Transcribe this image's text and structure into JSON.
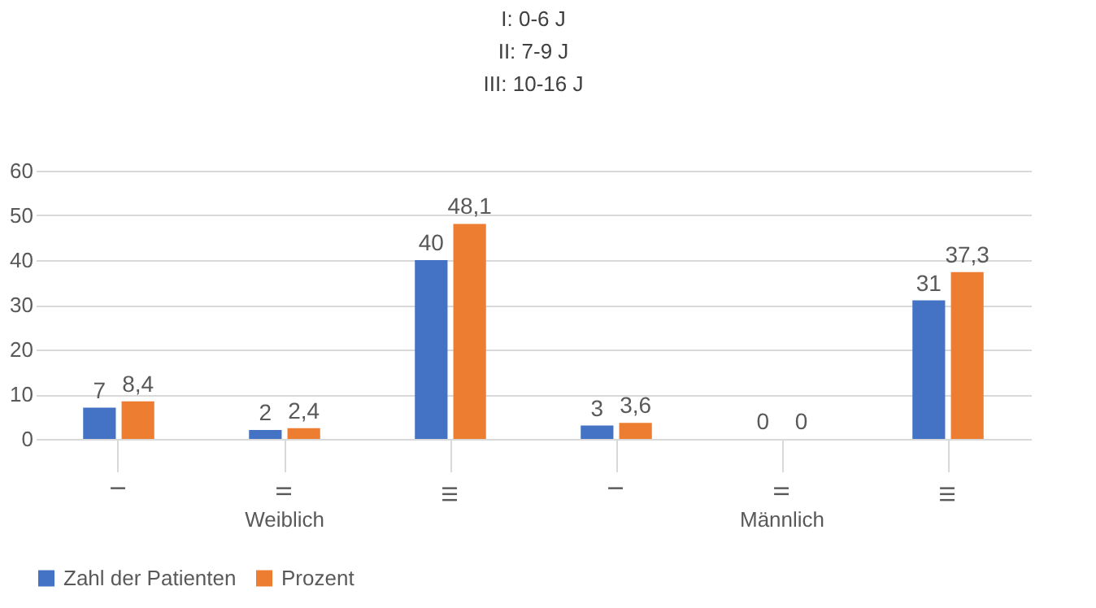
{
  "chart_data": {
    "type": "bar",
    "title": "I: 0-6 J\nII: 7-9 J\nIII: 10-16 J",
    "categories": [
      "I",
      "II",
      "III",
      "I",
      "II",
      "III"
    ],
    "series": [
      {
        "name": "Zahl der Patienten",
        "color": "#4472c4",
        "values": [
          7,
          2,
          40,
          3,
          0,
          31
        ]
      },
      {
        "name": "Prozent",
        "color": "#ed7d31",
        "values": [
          8.4,
          2.4,
          48.1,
          3.6,
          0,
          37.3
        ],
        "value_labels": [
          "8,4",
          "2,4",
          "48,1",
          "3,6",
          "0",
          "37,3"
        ]
      }
    ],
    "annotations": [
      "Weiblich",
      "Männlich"
    ],
    "ylim": [
      0,
      60
    ],
    "yticks": [
      0,
      10,
      20,
      30,
      40,
      50,
      60
    ],
    "grid": "y",
    "data_labels": true,
    "legend": "bottom"
  }
}
